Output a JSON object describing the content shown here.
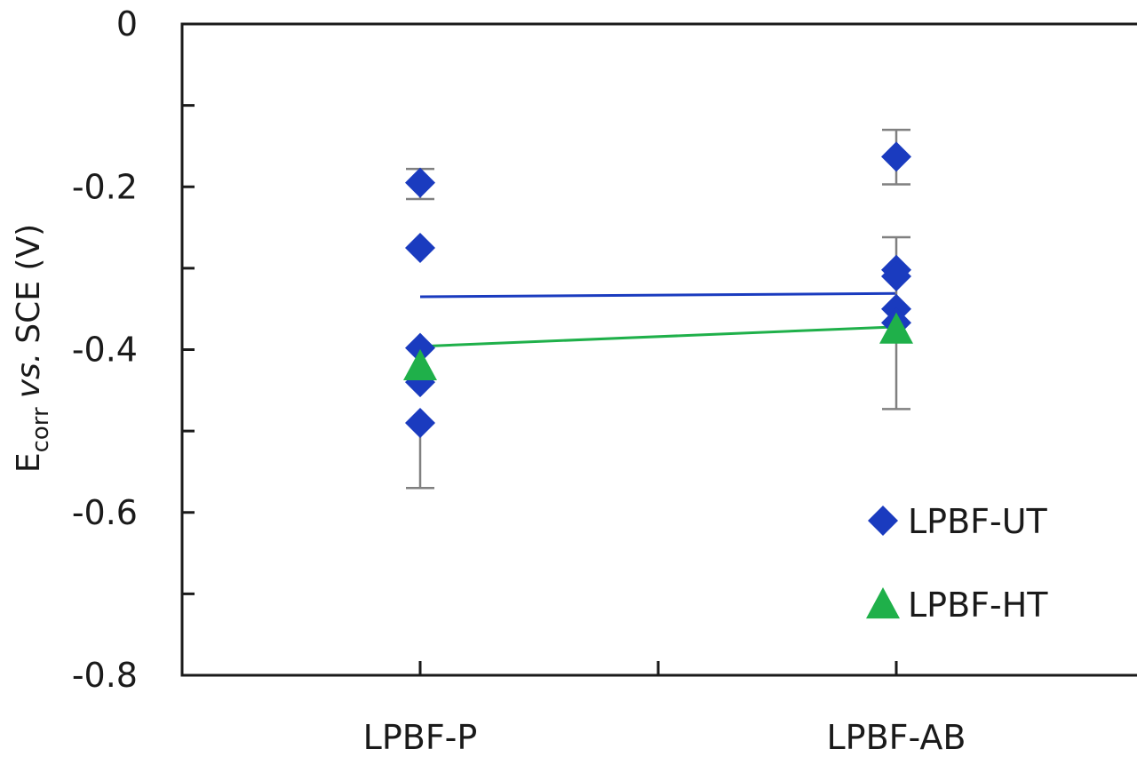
{
  "chart_data": {
    "type": "scatter",
    "categories": [
      "LPBF-P",
      "LPBF-AB"
    ],
    "ylabel": {
      "main": "E",
      "subscript": "corr",
      "italic": "vs.",
      "rest": "SCE  (V)"
    },
    "ylim": [
      -0.8,
      0
    ],
    "yticks": [
      0,
      -0.1,
      -0.2,
      -0.3,
      -0.4,
      -0.5,
      -0.6,
      -0.7,
      -0.8
    ],
    "ytick_labels": [
      "0",
      "",
      "-0.2",
      "",
      "-0.4",
      "",
      "-0.6",
      "",
      "-0.8"
    ],
    "grid": false,
    "legend": "bottom-right",
    "series": [
      {
        "name": "LPBF-UT",
        "marker": "diamond",
        "color": "#1a3bbf",
        "points": [
          {
            "category": "LPBF-P",
            "y": -0.195
          },
          {
            "category": "LPBF-P",
            "y": -0.275
          },
          {
            "category": "LPBF-P",
            "y": -0.398
          },
          {
            "category": "LPBF-P",
            "y": -0.44
          },
          {
            "category": "LPBF-P",
            "y": -0.49
          },
          {
            "category": "LPBF-AB",
            "y": -0.163
          },
          {
            "category": "LPBF-AB",
            "y": -0.302
          },
          {
            "category": "LPBF-AB",
            "y": -0.31
          },
          {
            "category": "LPBF-AB",
            "y": -0.35
          },
          {
            "category": "LPBF-AB",
            "y": -0.367
          }
        ],
        "mean_line": [
          {
            "category": "LPBF-P",
            "y": -0.335
          },
          {
            "category": "LPBF-AB",
            "y": -0.331
          }
        ]
      },
      {
        "name": "LPBF-HT",
        "marker": "triangle",
        "color": "#1fb04a",
        "points": [
          {
            "category": "LPBF-P",
            "y": -0.42
          },
          {
            "category": "LPBF-AB",
            "y": -0.375
          }
        ],
        "mean_line": [
          {
            "category": "LPBF-P",
            "y": -0.396
          },
          {
            "category": "LPBF-AB",
            "y": -0.372
          }
        ]
      }
    ],
    "error_bars": [
      {
        "category": "LPBF-P",
        "low": -0.215,
        "high": -0.178
      },
      {
        "category": "LPBF-P",
        "low": -0.57,
        "high": -0.49
      },
      {
        "category": "LPBF-AB",
        "low": -0.197,
        "high": -0.13
      },
      {
        "category": "LPBF-AB",
        "low": -0.473,
        "high": -0.262
      }
    ],
    "error_bar_color": "#808080"
  }
}
